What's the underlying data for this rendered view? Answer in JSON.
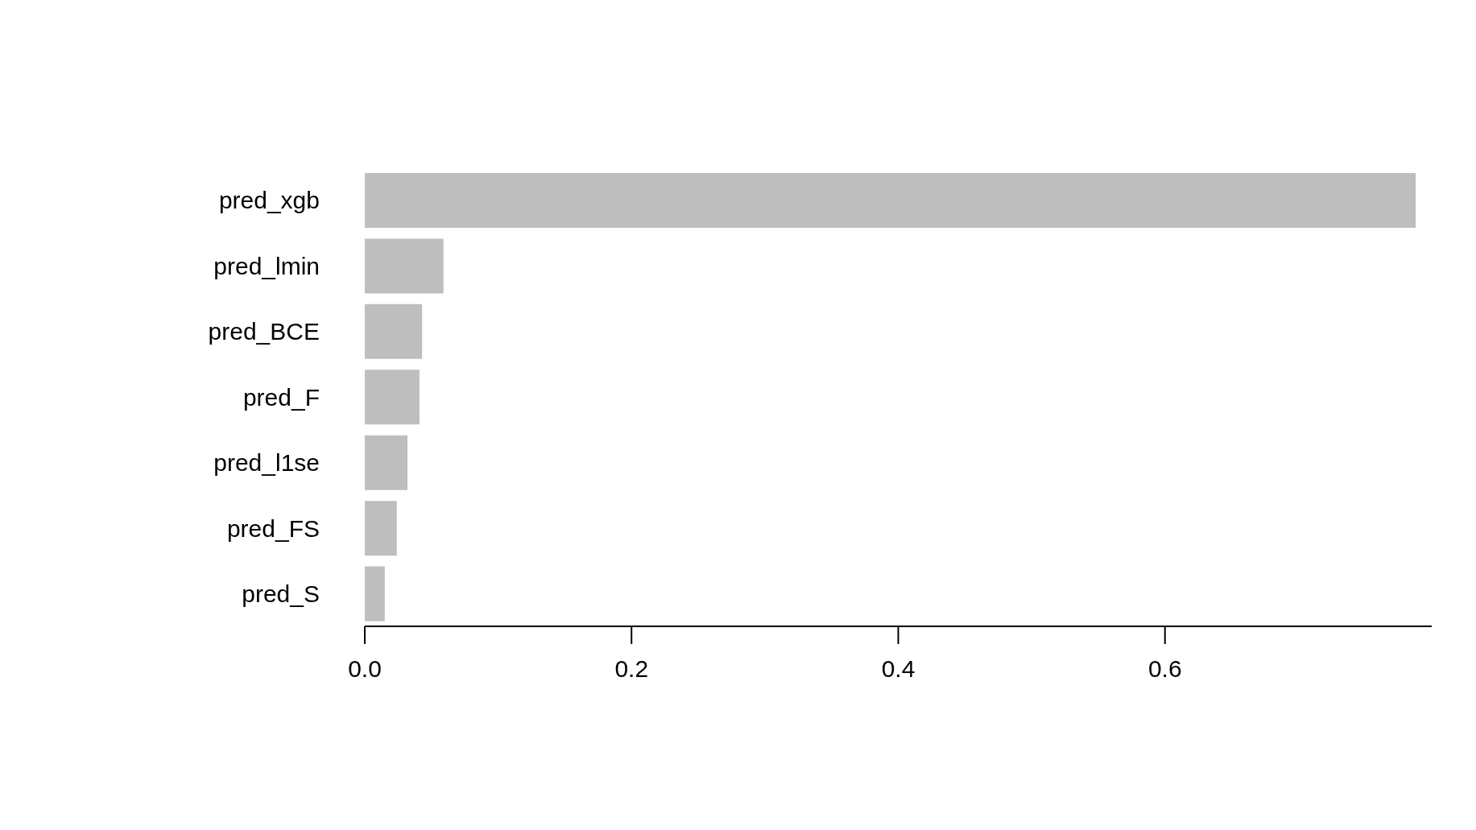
{
  "chart_data": {
    "type": "bar",
    "orientation": "horizontal",
    "categories": [
      "pred_xgb",
      "pred_lmin",
      "pred_BCE",
      "pred_F",
      "pred_l1se",
      "pred_FS",
      "pred_S"
    ],
    "values": [
      0.788,
      0.059,
      0.043,
      0.041,
      0.032,
      0.024,
      0.015
    ],
    "color": "#bebebe",
    "xlim": [
      0,
      0.8
    ],
    "xticks": [
      {
        "value": 0,
        "label": "0.0"
      },
      {
        "value": 0.2,
        "label": "0.2"
      },
      {
        "value": 0.4,
        "label": "0.4"
      },
      {
        "value": 0.6,
        "label": "0.6"
      }
    ],
    "grid": false,
    "legend": false
  }
}
